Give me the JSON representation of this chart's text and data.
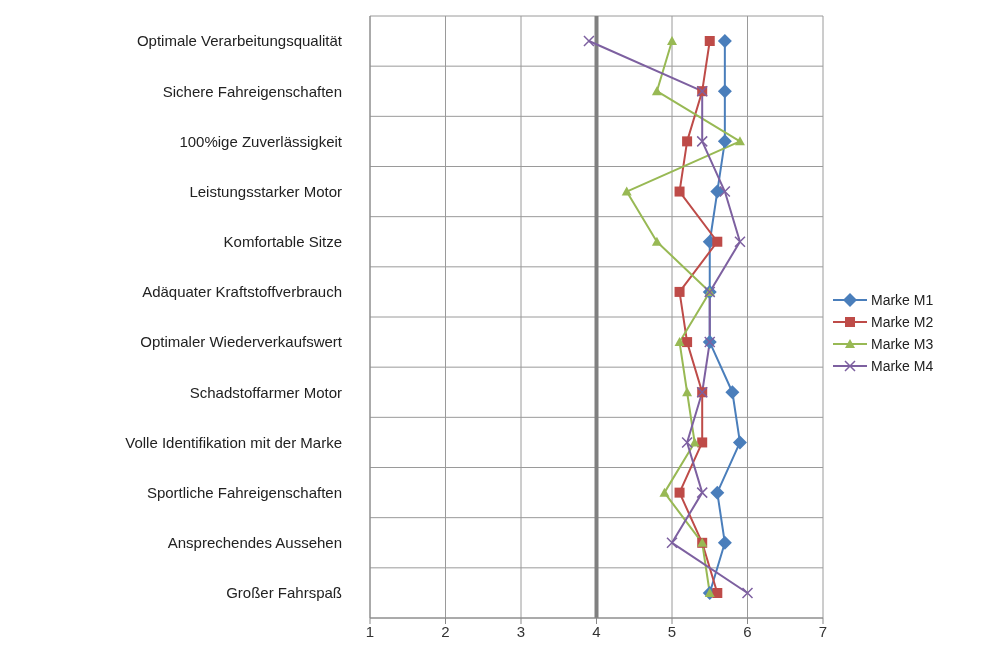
{
  "chart_data": {
    "type": "line",
    "orientation": "horizontal",
    "categories": [
      "Optimale Verarbeitungsqualität",
      "Sichere Fahreigenschaften",
      "100%ige Zuverlässigkeit",
      "Leistungsstarker Motor",
      "Komfortable Sitze",
      "Adäquater Kraftstoffverbrauch",
      "Optimaler Wiederverkaufswert",
      "Schadstoffarmer Motor",
      "Volle Identifikation mit der Marke",
      "Sportliche Fahreigenschaften",
      "Ansprechendes Aussehen",
      "Großer Fahrspaß"
    ],
    "series": [
      {
        "name": "Marke M1",
        "color": "#4a7ebb",
        "marker": "diamond",
        "values": [
          5.7,
          5.7,
          5.7,
          5.6,
          5.5,
          5.5,
          5.5,
          5.8,
          5.9,
          5.6,
          5.7,
          5.5
        ]
      },
      {
        "name": "Marke M2",
        "color": "#be4b48",
        "marker": "square",
        "values": [
          5.5,
          5.4,
          5.2,
          5.1,
          5.6,
          5.1,
          5.2,
          5.4,
          5.4,
          5.1,
          5.4,
          5.6
        ]
      },
      {
        "name": "Marke M3",
        "color": "#98b954",
        "marker": "triangle",
        "values": [
          5.0,
          4.8,
          5.9,
          4.4,
          4.8,
          5.5,
          5.1,
          5.2,
          5.3,
          4.9,
          5.4,
          5.5
        ]
      },
      {
        "name": "Marke M4",
        "color": "#7d60a0",
        "marker": "cross",
        "values": [
          3.9,
          5.4,
          5.4,
          5.7,
          5.9,
          5.5,
          5.5,
          5.4,
          5.2,
          5.4,
          5.0,
          6.0
        ]
      }
    ],
    "xlim": [
      1,
      7
    ],
    "xticks": [
      1,
      2,
      3,
      4,
      5,
      6,
      7
    ],
    "grid": true,
    "legend": "right",
    "ref_lines": [
      {
        "axis": "x",
        "value": 4,
        "color": "#808080"
      }
    ]
  }
}
